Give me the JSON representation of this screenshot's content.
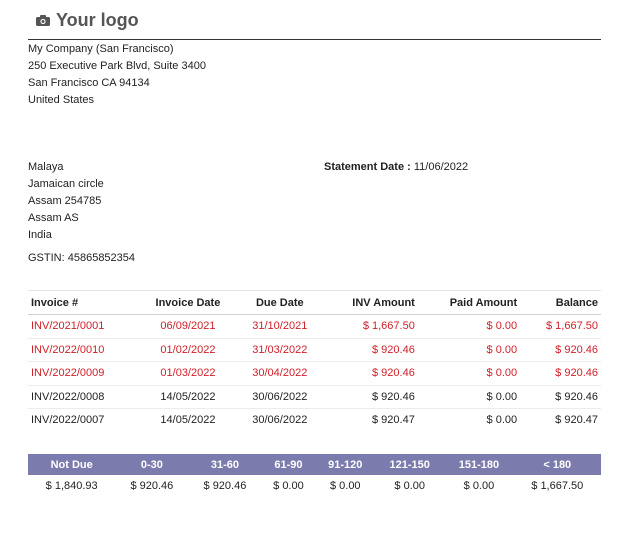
{
  "logo": {
    "text": "Your logo",
    "icon": "camera-icon"
  },
  "company": {
    "name": "My Company (San Francisco)",
    "street": "250 Executive Park Blvd, Suite 3400",
    "city_line": "San Francisco CA 94134",
    "country": "United States"
  },
  "partner": {
    "name": "Malaya",
    "street": "Jamaican circle",
    "city_line": "Assam 254785",
    "state": "Assam AS",
    "country": "India",
    "gstin": "GSTIN: 45865852354"
  },
  "statement": {
    "label": "Statement Date :",
    "date": "11/06/2022"
  },
  "invoice_table": {
    "headers": [
      "Invoice #",
      "Invoice Date",
      "Due Date",
      "INV Amount",
      "Paid Amount",
      "Balance"
    ],
    "rows": [
      {
        "overdue": true,
        "cells": [
          "INV/2021/0001",
          "06/09/2021",
          "31/10/2021",
          "$ 1,667.50",
          "$ 0.00",
          "$ 1,667.50"
        ]
      },
      {
        "overdue": true,
        "cells": [
          "INV/2022/0010",
          "01/02/2022",
          "31/03/2022",
          "$ 920.46",
          "$ 0.00",
          "$ 920.46"
        ]
      },
      {
        "overdue": true,
        "cells": [
          "INV/2022/0009",
          "01/03/2022",
          "30/04/2022",
          "$ 920.46",
          "$ 0.00",
          "$ 920.46"
        ]
      },
      {
        "overdue": false,
        "cells": [
          "INV/2022/0008",
          "14/05/2022",
          "30/06/2022",
          "$ 920.46",
          "$ 0.00",
          "$ 920.46"
        ]
      },
      {
        "overdue": false,
        "cells": [
          "INV/2022/0007",
          "14/05/2022",
          "30/06/2022",
          "$ 920.47",
          "$ 0.00",
          "$ 920.47"
        ]
      }
    ]
  },
  "aging": {
    "headers": [
      "Not Due",
      "0-30",
      "31-60",
      "61-90",
      "91-120",
      "121-150",
      "151-180",
      "< 180"
    ],
    "values": [
      "$ 1,840.93",
      "$ 920.46",
      "$ 920.46",
      "$ 0.00",
      "$ 0.00",
      "$ 0.00",
      "$ 0.00",
      "$ 1,667.50"
    ]
  },
  "colors": {
    "overdue": "#d0202a",
    "aging_header": "#7c7bad"
  }
}
